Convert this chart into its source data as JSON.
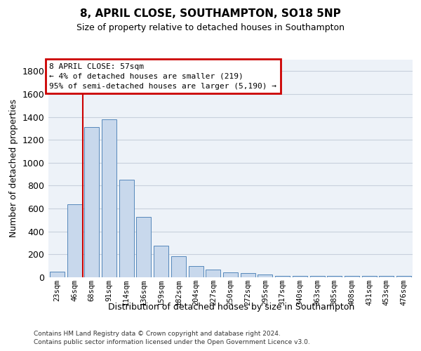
{
  "title1": "8, APRIL CLOSE, SOUTHAMPTON, SO18 5NP",
  "title2": "Size of property relative to detached houses in Southampton",
  "xlabel": "Distribution of detached houses by size in Southampton",
  "ylabel": "Number of detached properties",
  "categories": [
    "23sqm",
    "46sqm",
    "68sqm",
    "91sqm",
    "114sqm",
    "136sqm",
    "159sqm",
    "182sqm",
    "204sqm",
    "227sqm",
    "250sqm",
    "272sqm",
    "295sqm",
    "317sqm",
    "340sqm",
    "363sqm",
    "385sqm",
    "408sqm",
    "431sqm",
    "453sqm",
    "476sqm"
  ],
  "values": [
    50,
    640,
    1310,
    1380,
    850,
    530,
    275,
    185,
    100,
    65,
    40,
    35,
    25,
    15,
    15,
    15,
    10,
    10,
    10,
    10,
    15
  ],
  "bar_color": "#c8d8ec",
  "bar_edge_color": "#5588bb",
  "grid_color": "#c8d0dc",
  "bg_color": "#edf2f8",
  "annotation_line1": "8 APRIL CLOSE: 57sqm",
  "annotation_line2": "← 4% of detached houses are smaller (219)",
  "annotation_line3": "95% of semi-detached houses are larger (5,190) →",
  "annotation_box_color": "#ffffff",
  "annotation_box_edge": "#cc0000",
  "vline_color": "#cc0000",
  "ylim": [
    0,
    1900
  ],
  "yticks": [
    0,
    200,
    400,
    600,
    800,
    1000,
    1200,
    1400,
    1600,
    1800
  ],
  "footer1": "Contains HM Land Registry data © Crown copyright and database right 2024.",
  "footer2": "Contains public sector information licensed under the Open Government Licence v3.0."
}
